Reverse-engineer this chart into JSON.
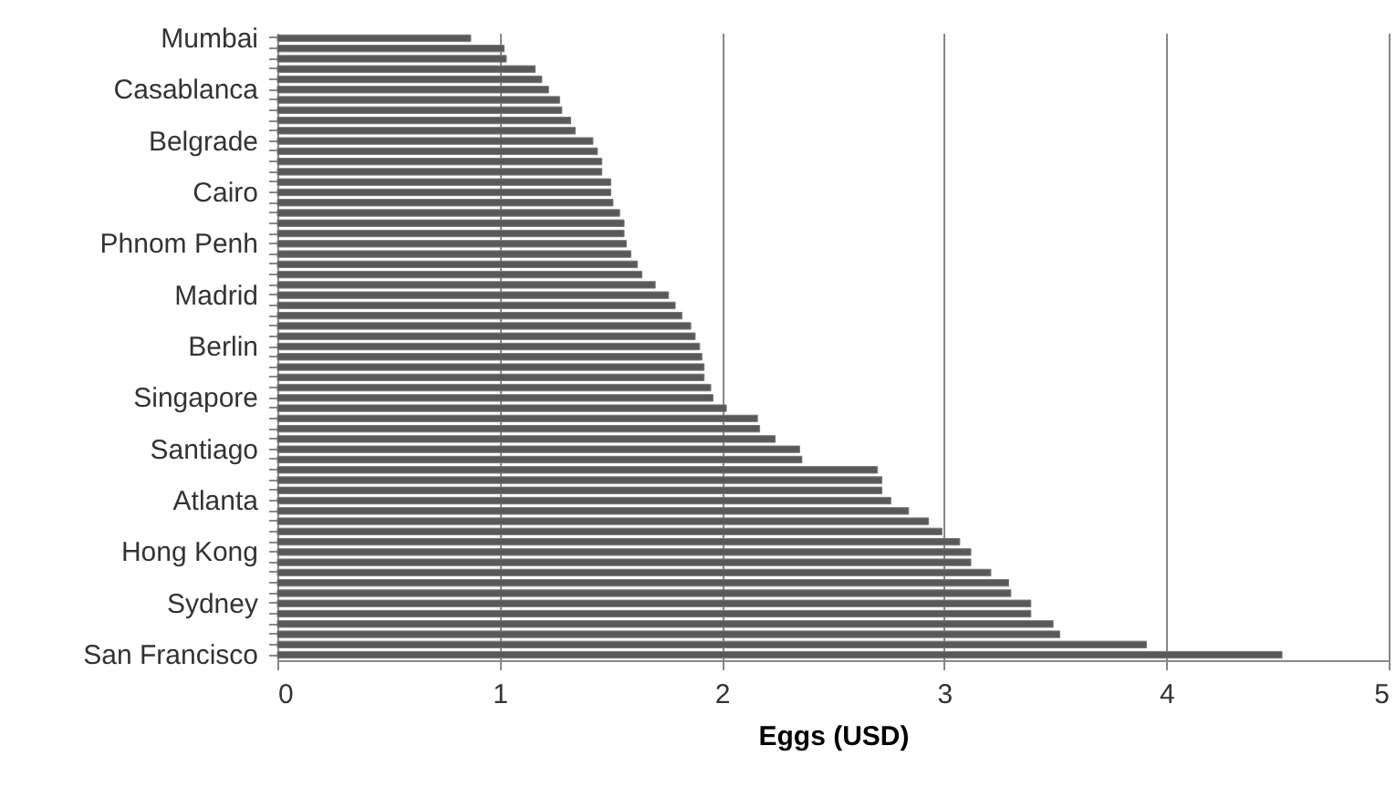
{
  "chart_data": {
    "type": "bar",
    "orientation": "horizontal",
    "xlabel": "Eggs (USD)",
    "categories": [
      "Mumbai",
      null,
      null,
      null,
      null,
      "Casablanca",
      null,
      null,
      null,
      null,
      "Belgrade",
      null,
      null,
      null,
      null,
      "Cairo",
      null,
      null,
      null,
      null,
      "Phnom Penh",
      null,
      null,
      null,
      null,
      "Madrid",
      null,
      null,
      null,
      null,
      "Berlin",
      null,
      null,
      null,
      null,
      "Singapore",
      null,
      null,
      null,
      null,
      "Santiago",
      null,
      null,
      null,
      null,
      "Atlanta",
      null,
      null,
      null,
      null,
      "Hong Kong",
      null,
      null,
      null,
      null,
      "Sydney",
      null,
      null,
      null,
      null,
      "San Francisco"
    ],
    "values": [
      0.87,
      1.02,
      1.03,
      1.16,
      1.19,
      1.22,
      1.27,
      1.28,
      1.32,
      1.34,
      1.42,
      1.44,
      1.46,
      1.46,
      1.5,
      1.5,
      1.51,
      1.54,
      1.56,
      1.56,
      1.57,
      1.59,
      1.62,
      1.64,
      1.7,
      1.76,
      1.79,
      1.82,
      1.86,
      1.88,
      1.9,
      1.91,
      1.92,
      1.92,
      1.95,
      1.96,
      2.02,
      2.16,
      2.17,
      2.24,
      2.35,
      2.36,
      2.7,
      2.72,
      2.72,
      2.76,
      2.84,
      2.93,
      2.99,
      3.07,
      3.12,
      3.12,
      3.21,
      3.29,
      3.3,
      3.39,
      3.39,
      3.49,
      3.52,
      3.91,
      4.52
    ],
    "color": "#595959",
    "xlim": [
      0,
      5
    ],
    "xticks": [
      0,
      1,
      2,
      3,
      4,
      5
    ],
    "grid": "x"
  }
}
